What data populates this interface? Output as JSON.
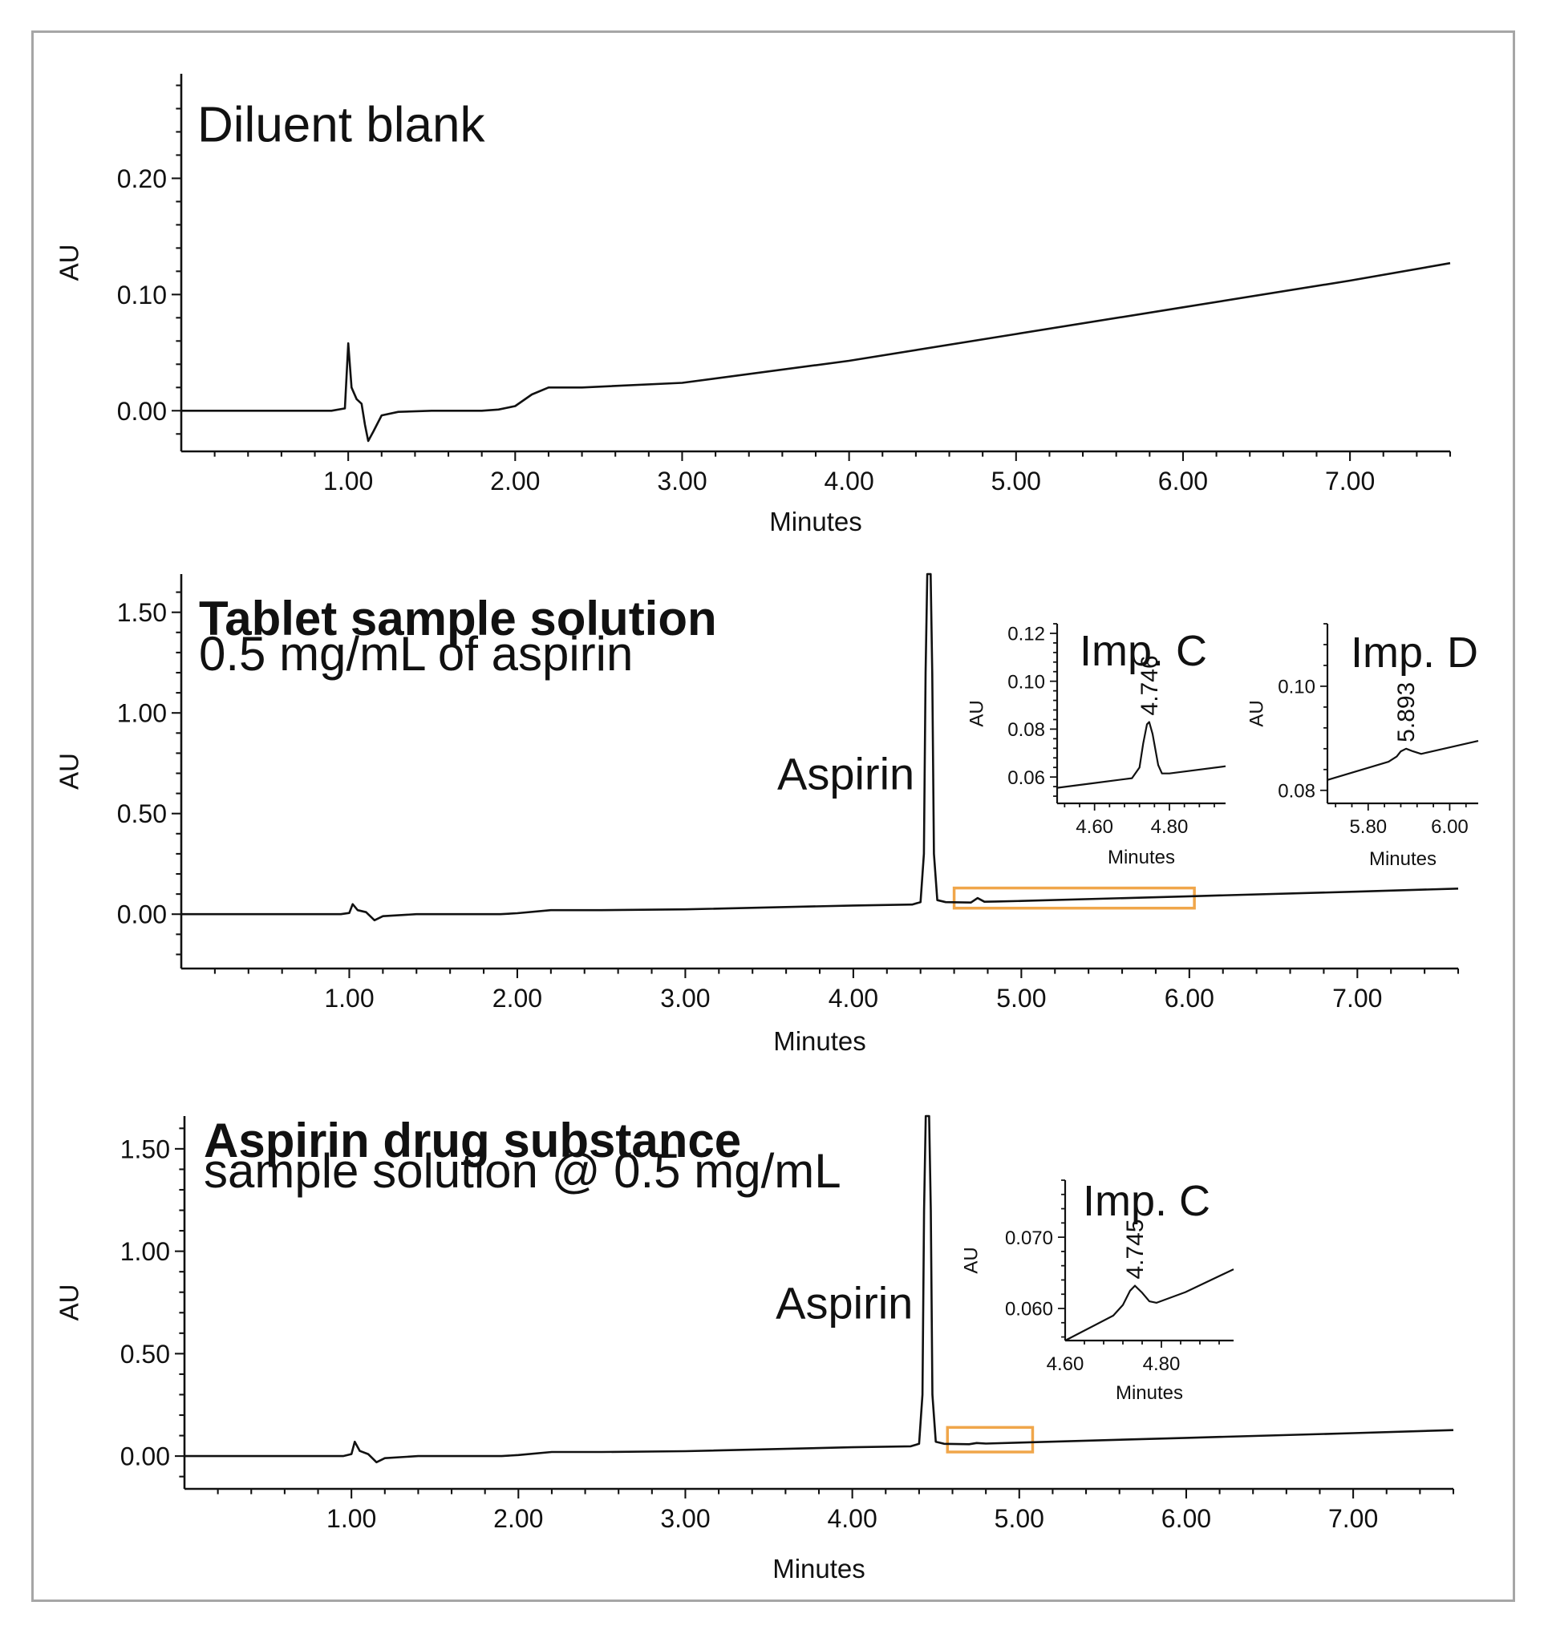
{
  "colors": {
    "trace": "#111111",
    "axis": "#111111",
    "highlight": "#f0a64a",
    "frame": "#a6a6a6"
  },
  "chart_data": [
    {
      "type": "line",
      "title": "Diluent blank",
      "subtitle": "",
      "xlabel": "Minutes",
      "ylabel": "AU",
      "xlim": [
        0,
        7.6
      ],
      "ylim": [
        -0.035,
        0.29
      ],
      "x_ticks": [
        "1.00",
        "2.00",
        "3.00",
        "4.00",
        "5.00",
        "6.00",
        "7.00"
      ],
      "y_ticks": [
        "0.00",
        "0.10",
        "0.20"
      ],
      "grid": false,
      "series": [
        {
          "x": [
            0.0,
            0.9,
            0.98,
            1.0,
            1.02,
            1.05,
            1.08,
            1.1,
            1.12,
            1.15,
            1.2,
            1.3,
            1.5,
            1.8,
            1.9,
            2.0,
            2.1,
            2.2,
            2.4,
            3.0,
            4.0,
            5.0,
            6.0,
            7.0,
            7.6
          ],
          "y": [
            0.0,
            0.0,
            0.002,
            0.058,
            0.02,
            0.01,
            0.006,
            -0.012,
            -0.026,
            -0.018,
            -0.004,
            -0.001,
            0.0,
            0.0,
            0.001,
            0.004,
            0.014,
            0.02,
            0.02,
            0.024,
            0.043,
            0.066,
            0.089,
            0.112,
            0.127
          ]
        }
      ]
    },
    {
      "type": "line",
      "title": "Tablet sample solution",
      "subtitle": "0.5 mg/mL of aspirin",
      "xlabel": "Minutes",
      "ylabel": "AU",
      "xlim": [
        0,
        7.6
      ],
      "ylim": [
        -0.27,
        1.69
      ],
      "x_ticks": [
        "1.00",
        "2.00",
        "3.00",
        "4.00",
        "5.00",
        "6.00",
        "7.00"
      ],
      "y_ticks": [
        "0.00",
        "0.50",
        "1.00",
        "1.50"
      ],
      "grid": false,
      "annotations": [
        {
          "text": "Aspirin",
          "x": 4.45,
          "y": 0.7
        }
      ],
      "highlight_x": [
        4.6,
        6.03
      ],
      "highlight_y": [
        0.03,
        0.13
      ],
      "series": [
        {
          "x": [
            0.0,
            0.95,
            1.0,
            1.02,
            1.05,
            1.1,
            1.15,
            1.2,
            1.4,
            1.9,
            2.0,
            2.2,
            2.5,
            3.0,
            4.0,
            4.35,
            4.4,
            4.42,
            4.43,
            4.44,
            4.45,
            4.46,
            4.47,
            4.48,
            4.5,
            4.55,
            4.7,
            4.74,
            4.78,
            4.85,
            5.0,
            6.0,
            7.0,
            7.6
          ],
          "y": [
            0.0,
            0.0,
            0.006,
            0.05,
            0.02,
            0.01,
            -0.03,
            -0.01,
            0.0,
            0.0,
            0.005,
            0.02,
            0.02,
            0.024,
            0.043,
            0.048,
            0.06,
            0.3,
            1.2,
            1.7,
            1.7,
            1.7,
            1.2,
            0.3,
            0.07,
            0.06,
            0.058,
            0.08,
            0.062,
            0.063,
            0.066,
            0.089,
            0.112,
            0.127
          ]
        }
      ]
    },
    {
      "type": "line",
      "title": "Imp. C",
      "subtitle": "",
      "xlabel": "Minutes",
      "ylabel": "AU",
      "xlim": [
        4.5,
        4.95
      ],
      "ylim": [
        0.049,
        0.124
      ],
      "x_ticks": [
        "4.60",
        "4.80"
      ],
      "y_ticks": [
        "0.06",
        "0.08",
        "0.10",
        "0.12"
      ],
      "grid": false,
      "peak_label": "4.746",
      "peak_label_x": 4.746,
      "series": [
        {
          "x": [
            4.5,
            4.6,
            4.7,
            4.72,
            4.73,
            4.74,
            4.746,
            4.755,
            4.77,
            4.78,
            4.8,
            4.95
          ],
          "y": [
            0.0555,
            0.0575,
            0.0595,
            0.064,
            0.074,
            0.082,
            0.083,
            0.078,
            0.065,
            0.0615,
            0.0615,
            0.0645
          ]
        }
      ]
    },
    {
      "type": "line",
      "title": "Imp. D",
      "subtitle": "",
      "xlabel": "Minutes",
      "ylabel": "AU",
      "xlim": [
        5.7,
        6.07
      ],
      "ylim": [
        0.0775,
        0.112
      ],
      "x_ticks": [
        "5.80",
        "6.00"
      ],
      "y_ticks": [
        "0.08",
        "0.10"
      ],
      "grid": false,
      "peak_label": "5.893",
      "peak_label_x": 5.893,
      "series": [
        {
          "x": [
            5.7,
            5.85,
            5.87,
            5.88,
            5.893,
            5.91,
            5.93,
            6.07
          ],
          "y": [
            0.082,
            0.0855,
            0.0865,
            0.0875,
            0.088,
            0.0875,
            0.087,
            0.0895
          ]
        }
      ]
    },
    {
      "type": "line",
      "title": "Aspirin drug substance",
      "subtitle": "sample solution @ 0.5 mg/mL",
      "xlabel": "Minutes",
      "ylabel": "AU",
      "xlim": [
        0,
        7.6
      ],
      "ylim": [
        -0.16,
        1.66
      ],
      "x_ticks": [
        "1.00",
        "2.00",
        "3.00",
        "4.00",
        "5.00",
        "6.00",
        "7.00"
      ],
      "y_ticks": [
        "0.00",
        "0.50",
        "1.00",
        "1.50"
      ],
      "grid": false,
      "annotations": [
        {
          "text": "Aspirin",
          "x": 4.45,
          "y": 0.75
        }
      ],
      "highlight_x": [
        4.57,
        5.08
      ],
      "highlight_y": [
        0.02,
        0.14
      ],
      "series": [
        {
          "x": [
            0.0,
            0.95,
            1.0,
            1.02,
            1.05,
            1.1,
            1.15,
            1.2,
            1.4,
            1.9,
            2.0,
            2.2,
            2.5,
            3.0,
            4.0,
            4.35,
            4.4,
            4.42,
            4.43,
            4.44,
            4.45,
            4.46,
            4.47,
            4.48,
            4.5,
            4.55,
            4.7,
            4.745,
            4.8,
            5.0,
            6.0,
            7.0,
            7.6
          ],
          "y": [
            0.0,
            0.0,
            0.01,
            0.07,
            0.025,
            0.01,
            -0.03,
            -0.01,
            0.0,
            0.0,
            0.005,
            0.02,
            0.02,
            0.024,
            0.043,
            0.048,
            0.06,
            0.3,
            1.2,
            1.68,
            1.68,
            1.68,
            1.2,
            0.3,
            0.07,
            0.06,
            0.058,
            0.064,
            0.061,
            0.066,
            0.089,
            0.112,
            0.127
          ]
        }
      ]
    },
    {
      "type": "line",
      "title": "Imp. C",
      "subtitle": "",
      "xlabel": "Minutes",
      "ylabel": "AU",
      "xlim": [
        4.6,
        4.95
      ],
      "ylim": [
        0.0555,
        0.078
      ],
      "x_ticks": [
        "4.60",
        "4.80"
      ],
      "y_ticks": [
        "0.060",
        "0.070"
      ],
      "grid": false,
      "peak_label": "4.745",
      "peak_label_x": 4.745,
      "series": [
        {
          "x": [
            4.6,
            4.7,
            4.72,
            4.735,
            4.745,
            4.76,
            4.775,
            4.79,
            4.85,
            4.95
          ],
          "y": [
            0.0555,
            0.059,
            0.0605,
            0.0625,
            0.0632,
            0.0622,
            0.061,
            0.0608,
            0.0623,
            0.0655
          ]
        }
      ]
    }
  ]
}
